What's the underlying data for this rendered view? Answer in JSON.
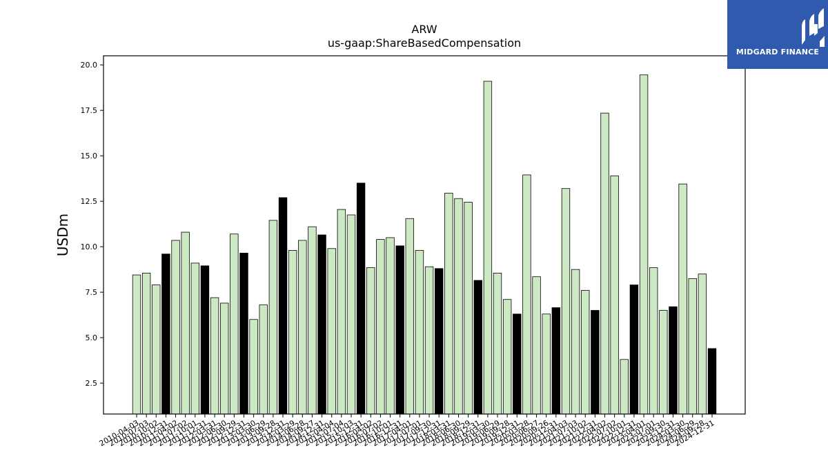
{
  "logo": {
    "name": "MIDGARD FINANCE"
  },
  "chart_data": {
    "type": "bar",
    "title": "ARW",
    "subtitle": "us-gaap:ShareBasedCompensation",
    "xlabel": "",
    "ylabel": "USDm",
    "ylim": [
      0.8,
      20.5
    ],
    "yticks": [
      "2.5",
      "5.0",
      "7.5",
      "10.0",
      "12.5",
      "15.0",
      "17.5",
      "20.0"
    ],
    "colors": {
      "quarter": "#cde9c4",
      "annual": "#000000",
      "edge": "#000000"
    },
    "categories": [
      "2010-04-03",
      "2010-07-03",
      "2010-10-02",
      "2010-12-31",
      "2011-04-02",
      "2011-07-02",
      "2011-10-01",
      "2011-12-31",
      "2012-03-31",
      "2012-06-30",
      "2012-09-29",
      "2012-12-31",
      "2013-03-30",
      "2013-06-29",
      "2013-09-28",
      "2013-12-31",
      "2014-03-29",
      "2014-06-28",
      "2014-09-27",
      "2014-12-31",
      "2015-04-04",
      "2015-07-04",
      "2015-10-03",
      "2015-12-31",
      "2016-04-02",
      "2016-07-02",
      "2016-10-01",
      "2016-12-31",
      "2017-04-01",
      "2017-07-01",
      "2017-09-30",
      "2017-12-31",
      "2018-03-31",
      "2018-06-30",
      "2018-09-29",
      "2018-12-31",
      "2019-03-30",
      "2019-06-29",
      "2019-09-28",
      "2019-12-31",
      "2020-03-28",
      "2020-06-27",
      "2020-09-26",
      "2020-12-31",
      "2021-04-03",
      "2021-07-03",
      "2021-10-02",
      "2021-12-31",
      "2022-04-02",
      "2022-07-02",
      "2022-10-01",
      "2022-12-31",
      "2023-04-01",
      "2023-07-01",
      "2023-09-30",
      "2023-12-31",
      "2024-03-30",
      "2024-06-29",
      "2024-09-28",
      "2024-12-31"
    ],
    "values": [
      8.45,
      8.55,
      7.9,
      9.6,
      10.35,
      10.8,
      9.1,
      8.95,
      7.2,
      6.9,
      10.7,
      9.65,
      6.0,
      6.8,
      11.45,
      12.7,
      9.8,
      10.35,
      11.1,
      10.65,
      9.9,
      12.05,
      11.75,
      13.5,
      8.85,
      10.4,
      10.5,
      10.05,
      11.55,
      9.8,
      8.9,
      8.8,
      12.95,
      12.65,
      12.45,
      8.15,
      19.1,
      8.55,
      7.1,
      6.3,
      13.95,
      8.35,
      6.3,
      6.65,
      13.2,
      8.75,
      7.6,
      6.5,
      17.35,
      13.9,
      3.8,
      7.9,
      19.45,
      8.85,
      6.5,
      6.7,
      13.45,
      8.25,
      8.5,
      4.4
    ],
    "annual": [
      false,
      false,
      false,
      true,
      false,
      false,
      false,
      true,
      false,
      false,
      false,
      true,
      false,
      false,
      false,
      true,
      false,
      false,
      false,
      true,
      false,
      false,
      false,
      true,
      false,
      false,
      false,
      true,
      false,
      false,
      false,
      true,
      false,
      false,
      false,
      true,
      false,
      false,
      false,
      true,
      false,
      false,
      false,
      true,
      false,
      false,
      false,
      true,
      false,
      false,
      false,
      true,
      false,
      false,
      false,
      true,
      false,
      false,
      false,
      true
    ]
  }
}
